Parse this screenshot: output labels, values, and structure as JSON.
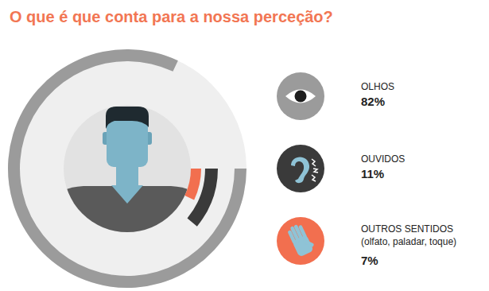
{
  "chart_data": {
    "type": "pie",
    "title": "O que é que conta para a nossa perceção?",
    "categories": [
      "OLHOS",
      "OUVIDOS",
      "OUTROS SENTIDOS"
    ],
    "values": [
      82,
      11,
      7
    ],
    "value_labels": [
      "82%",
      "11%",
      "7%"
    ],
    "colors": [
      "#9b9b9b",
      "#3a3a3a",
      "#f26f4f"
    ],
    "legend": "right",
    "annotations": [
      {
        "category": "OUTROS SENTIDOS",
        "text": "(olfato, paladar, toque)"
      }
    ]
  }
}
